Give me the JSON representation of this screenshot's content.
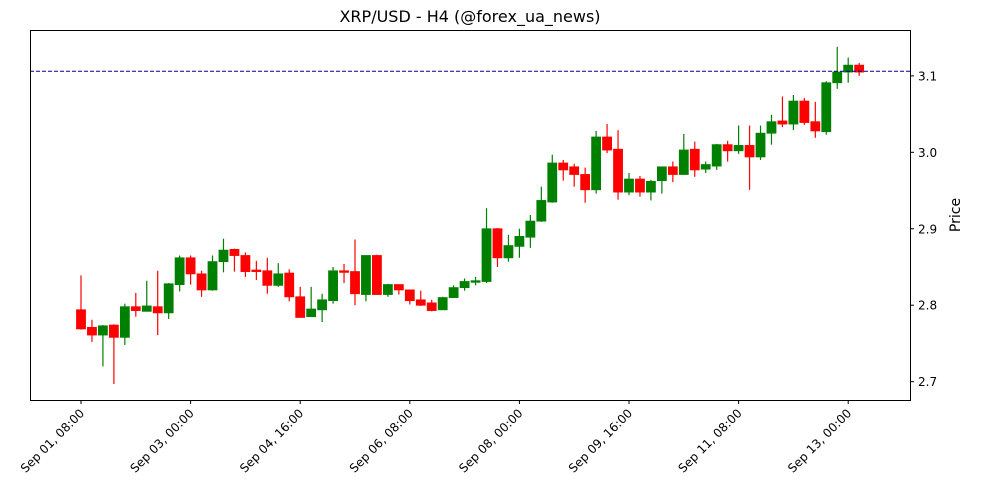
{
  "chart_data": {
    "type": "candlestick",
    "title": "XRP/USD - H4 (@forex_ua_news)",
    "xlabel": "",
    "ylabel": "Price",
    "ylim": [
      2.676,
      3.16
    ],
    "yticks": [
      2.7,
      2.8,
      2.9,
      3.0,
      3.1
    ],
    "xticks": [
      "Sep 01, 08:00",
      "Sep 03, 00:00",
      "Sep 04, 16:00",
      "Sep 06, 08:00",
      "Sep 08, 00:00",
      "Sep 09, 16:00",
      "Sep 11, 08:00",
      "Sep 13, 00:00"
    ],
    "grid": false,
    "colors": {
      "up": "#008000",
      "down": "#ff0000",
      "reference_line": "#00008b"
    },
    "reference_line": {
      "value": 3.106,
      "style": "dashed"
    },
    "fields": [
      "time",
      "open",
      "high",
      "low",
      "close"
    ],
    "candles": [
      [
        "Sep 01 08:00",
        2.794,
        2.839,
        2.768,
        2.769
      ],
      [
        "Sep 01 12:00",
        2.771,
        2.781,
        2.752,
        2.761
      ],
      [
        "Sep 01 16:00",
        2.761,
        2.774,
        2.72,
        2.773
      ],
      [
        "Sep 01 20:00",
        2.774,
        2.775,
        2.697,
        2.758
      ],
      [
        "Sep 02 00:00",
        2.758,
        2.802,
        2.748,
        2.798
      ],
      [
        "Sep 02 04:00",
        2.798,
        2.816,
        2.785,
        2.793
      ],
      [
        "Sep 02 08:00",
        2.792,
        2.832,
        2.792,
        2.799
      ],
      [
        "Sep 02 12:00",
        2.798,
        2.845,
        2.761,
        2.79
      ],
      [
        "Sep 02 16:00",
        2.79,
        2.829,
        2.782,
        2.828
      ],
      [
        "Sep 02 20:00",
        2.827,
        2.865,
        2.818,
        2.862
      ],
      [
        "Sep 03 00:00",
        2.862,
        2.865,
        2.827,
        2.841
      ],
      [
        "Sep 03 04:00",
        2.841,
        2.845,
        2.811,
        2.82
      ],
      [
        "Sep 03 08:00",
        2.82,
        2.865,
        2.819,
        2.857
      ],
      [
        "Sep 03 12:00",
        2.857,
        2.887,
        2.843,
        2.872
      ],
      [
        "Sep 03 16:00",
        2.873,
        2.874,
        2.844,
        2.865
      ],
      [
        "Sep 03 20:00",
        2.865,
        2.869,
        2.837,
        2.844
      ],
      [
        "Sep 04 00:00",
        2.846,
        2.858,
        2.833,
        2.844
      ],
      [
        "Sep 04 04:00",
        2.845,
        2.862,
        2.815,
        2.826
      ],
      [
        "Sep 04 08:00",
        2.826,
        2.855,
        2.824,
        2.841
      ],
      [
        "Sep 04 12:00",
        2.842,
        2.847,
        2.805,
        2.811
      ],
      [
        "Sep 04 16:00",
        2.811,
        2.824,
        2.784,
        2.784
      ],
      [
        "Sep 04 20:00",
        2.785,
        2.824,
        2.785,
        2.795
      ],
      [
        "Sep 05 00:00",
        2.794,
        2.815,
        2.778,
        2.807
      ],
      [
        "Sep 05 04:00",
        2.806,
        2.85,
        2.802,
        2.845
      ],
      [
        "Sep 05 08:00",
        2.845,
        2.854,
        2.829,
        2.843
      ],
      [
        "Sep 05 12:00",
        2.844,
        2.886,
        2.8,
        2.815
      ],
      [
        "Sep 05 16:00",
        2.814,
        2.865,
        2.805,
        2.865
      ],
      [
        "Sep 05 20:00",
        2.865,
        2.866,
        2.814,
        2.814
      ],
      [
        "Sep 06 00:00",
        2.814,
        2.828,
        2.811,
        2.827
      ],
      [
        "Sep 06 04:00",
        2.827,
        2.827,
        2.814,
        2.82
      ],
      [
        "Sep 06 08:00",
        2.82,
        2.82,
        2.801,
        2.806
      ],
      [
        "Sep 06 12:00",
        2.807,
        2.819,
        2.799,
        2.8
      ],
      [
        "Sep 06 16:00",
        2.803,
        2.807,
        2.792,
        2.793
      ],
      [
        "Sep 06 20:00",
        2.794,
        2.811,
        2.794,
        2.81
      ],
      [
        "Sep 07 00:00",
        2.81,
        2.826,
        2.81,
        2.823
      ],
      [
        "Sep 07 04:00",
        2.823,
        2.835,
        2.819,
        2.831
      ],
      [
        "Sep 07 08:00",
        2.83,
        2.837,
        2.826,
        2.832
      ],
      [
        "Sep 07 12:00",
        2.831,
        2.927,
        2.829,
        2.9
      ],
      [
        "Sep 07 16:00",
        2.9,
        2.901,
        2.85,
        2.862
      ],
      [
        "Sep 07 20:00",
        2.862,
        2.892,
        2.857,
        2.878
      ],
      [
        "Sep 08 00:00",
        2.877,
        2.9,
        2.862,
        2.89
      ],
      [
        "Sep 08 04:00",
        2.889,
        2.918,
        2.875,
        2.91
      ],
      [
        "Sep 08 08:00",
        2.91,
        2.955,
        2.909,
        2.937
      ],
      [
        "Sep 08 12:00",
        2.935,
        2.997,
        2.934,
        2.986
      ],
      [
        "Sep 08 16:00",
        2.986,
        2.99,
        2.963,
        2.977
      ],
      [
        "Sep 08 20:00",
        2.981,
        2.985,
        2.955,
        2.971
      ],
      [
        "Sep 09 00:00",
        2.971,
        2.98,
        2.934,
        2.951
      ],
      [
        "Sep 09 04:00",
        2.951,
        3.028,
        2.946,
        3.02
      ],
      [
        "Sep 09 08:00",
        3.02,
        3.037,
        2.999,
        3.003
      ],
      [
        "Sep 09 12:00",
        3.004,
        3.029,
        2.938,
        2.948
      ],
      [
        "Sep 09 16:00",
        2.948,
        2.973,
        2.944,
        2.965
      ],
      [
        "Sep 09 20:00",
        2.965,
        2.969,
        2.942,
        2.948
      ],
      [
        "Sep 10 00:00",
        2.948,
        2.964,
        2.937,
        2.962
      ],
      [
        "Sep 10 04:00",
        2.963,
        2.981,
        2.946,
        2.981
      ],
      [
        "Sep 10 08:00",
        2.981,
        2.988,
        2.961,
        2.971
      ],
      [
        "Sep 10 12:00",
        2.971,
        3.024,
        2.971,
        3.003
      ],
      [
        "Sep 10 16:00",
        3.004,
        3.014,
        2.968,
        2.977
      ],
      [
        "Sep 10 20:00",
        2.978,
        2.988,
        2.973,
        2.984
      ],
      [
        "Sep 11 00:00",
        2.982,
        3.011,
        2.977,
        3.01
      ],
      [
        "Sep 11 04:00",
        3.01,
        3.015,
        2.988,
        3.002
      ],
      [
        "Sep 11 08:00",
        3.002,
        3.035,
        2.998,
        3.009
      ],
      [
        "Sep 11 12:00",
        3.009,
        3.035,
        2.951,
        2.994
      ],
      [
        "Sep 11 16:00",
        2.994,
        3.035,
        2.99,
        3.025
      ],
      [
        "Sep 11 20:00",
        3.025,
        3.049,
        3.01,
        3.04
      ],
      [
        "Sep 12 00:00",
        3.041,
        3.073,
        3.033,
        3.037
      ],
      [
        "Sep 12 04:00",
        3.037,
        3.075,
        3.029,
        3.067
      ],
      [
        "Sep 12 08:00",
        3.067,
        3.071,
        3.036,
        3.039
      ],
      [
        "Sep 12 12:00",
        3.04,
        3.066,
        3.019,
        3.028
      ],
      [
        "Sep 12 16:00",
        3.027,
        3.093,
        3.023,
        3.091
      ],
      [
        "Sep 12 20:00",
        3.091,
        3.138,
        3.083,
        3.105
      ],
      [
        "Sep 13 00:00",
        3.105,
        3.124,
        3.091,
        3.114
      ],
      [
        "Sep 13 04:00",
        3.114,
        3.117,
        3.1,
        3.105
      ]
    ]
  }
}
